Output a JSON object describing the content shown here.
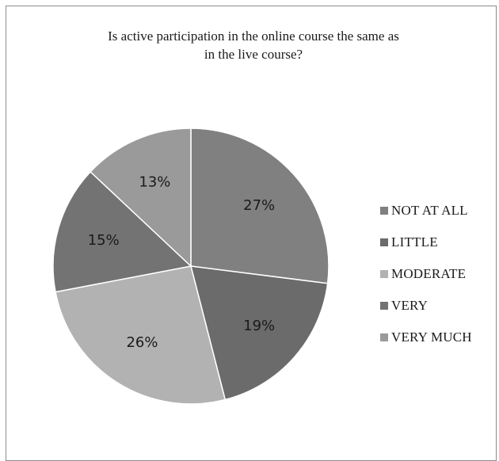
{
  "chart_data": {
    "type": "pie",
    "title": "Is active participation in the online course the same as\nin the live course?",
    "slices": [
      {
        "label": "NOT AT ALL",
        "value": 27,
        "display": "27%",
        "color": "#808080"
      },
      {
        "label": "LITTLE",
        "value": 19,
        "display": "19%",
        "color": "#6b6b6b"
      },
      {
        "label": "MODERATE",
        "value": 26,
        "display": "26%",
        "color": "#b2b2b2"
      },
      {
        "label": "VERY",
        "value": 15,
        "display": "15%",
        "color": "#737373"
      },
      {
        "label": "VERY MUCH",
        "value": 13,
        "display": "13%",
        "color": "#9a9a9a"
      }
    ],
    "start_angle_deg": 0,
    "direction": "clockwise",
    "legend_position": "right"
  }
}
